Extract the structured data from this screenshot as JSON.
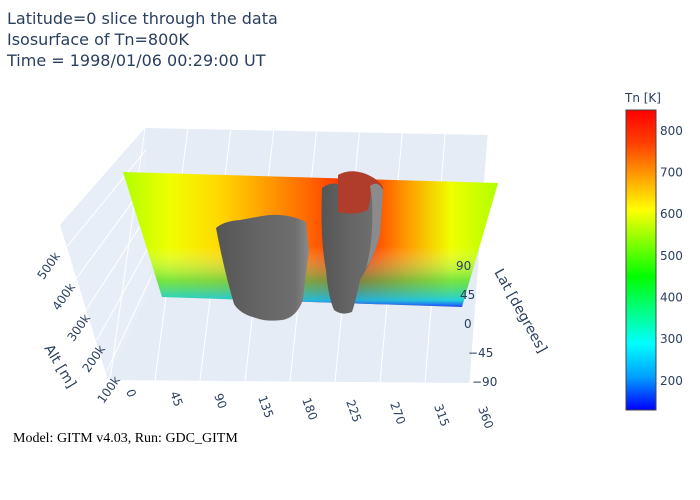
{
  "title": {
    "lines": [
      "Latitude=0 slice through the data",
      "Isosurface of Tn=800K",
      "Time = 1998/01/06 00:29:00 UT"
    ]
  },
  "caption": "Model: GITM v4.03,  Run: GDC_GITM",
  "colorbar": {
    "title": "Tn [K]",
    "ticks": [
      200,
      300,
      400,
      500,
      600,
      700,
      800
    ],
    "range": [
      130,
      850
    ],
    "colorscale": [
      "#0000ff",
      "#00a0ff",
      "#00ffff",
      "#00ff80",
      "#00ff00",
      "#80ff00",
      "#ffff00",
      "#ffa000",
      "#ff4000",
      "#ff0000"
    ]
  },
  "chart_data": {
    "type": "3d-surface",
    "x_axis": {
      "title": "",
      "ticks": [
        "0",
        "45",
        "90",
        "135",
        "180",
        "225",
        "270",
        "315",
        "360"
      ],
      "range": [
        0,
        360
      ]
    },
    "y_axis": {
      "title": "Lat [degrees]",
      "ticks": [
        "−90",
        "−45",
        "0",
        "45",
        "90"
      ],
      "range": [
        -90,
        90
      ]
    },
    "z_axis": {
      "title": "Alt [m]",
      "ticks": [
        "100k",
        "200k",
        "300k",
        "400k",
        "500k"
      ],
      "range": [
        100000,
        500000
      ]
    },
    "slice": {
      "latitude": 0,
      "variable": "Tn",
      "units": "K"
    },
    "isosurface": {
      "variable": "Tn",
      "value": 800,
      "units": "K",
      "color": "#5f5f5f"
    },
    "slice_temperature_profile": {
      "longitude": [
        0,
        45,
        90,
        135,
        180,
        225,
        270,
        315,
        360
      ],
      "upper_Tn": [
        560,
        600,
        640,
        690,
        740,
        810,
        700,
        600,
        560
      ],
      "base_Tn": [
        160,
        180,
        220,
        280,
        330,
        340,
        300,
        220,
        170
      ]
    }
  }
}
